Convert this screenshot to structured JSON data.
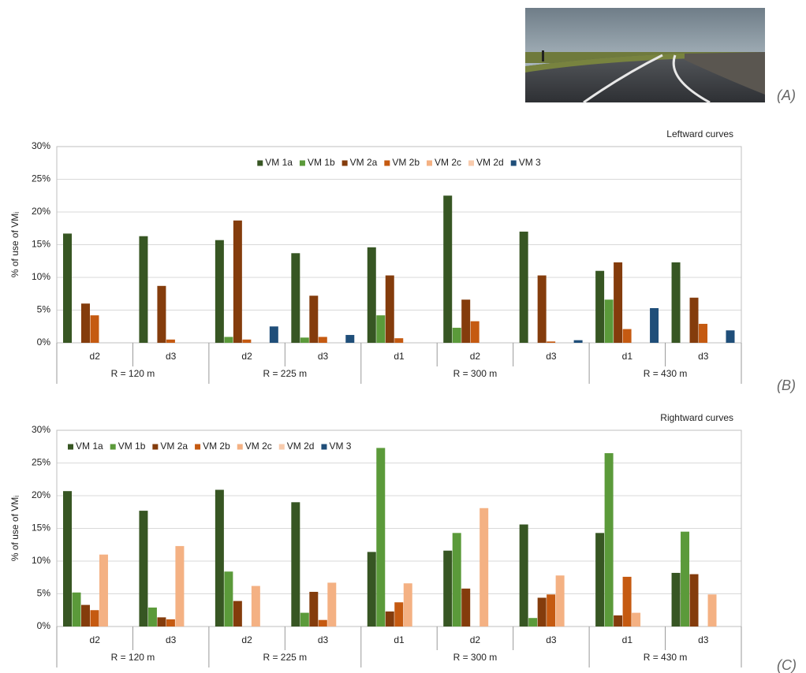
{
  "panel_labels": [
    "(A)",
    "(B)",
    "(C)"
  ],
  "chart_data": [
    {
      "type": "bar",
      "title": "Leftward curves",
      "y_label": "% of use of VMᵢ",
      "category_groups": [
        {
          "name": "R = 120 m",
          "categories": [
            "d2",
            "d3"
          ]
        },
        {
          "name": "R = 225 m",
          "categories": [
            "d2",
            "d3"
          ]
        },
        {
          "name": "R = 300 m",
          "categories": [
            "d1",
            "d2",
            "d3"
          ]
        },
        {
          "name": "R = 430 m",
          "categories": [
            "d1",
            "d3"
          ]
        }
      ],
      "series": [
        {
          "name": "VM 1a",
          "color": "#375623",
          "values": [
            16.7,
            16.3,
            15.7,
            13.7,
            14.6,
            22.5,
            17.0,
            11.0,
            12.3
          ]
        },
        {
          "name": "VM 1b",
          "color": "#5b9a3a",
          "values": [
            0,
            0,
            0.9,
            0.8,
            4.2,
            2.3,
            0,
            6.6,
            0
          ]
        },
        {
          "name": "VM 2a",
          "color": "#843c0c",
          "values": [
            6.0,
            8.7,
            18.7,
            7.2,
            10.3,
            6.6,
            10.3,
            12.3,
            6.9
          ]
        },
        {
          "name": "VM 2b",
          "color": "#c55a11",
          "values": [
            4.2,
            0.5,
            0.5,
            0.9,
            0.7,
            3.3,
            0.2,
            2.1,
            2.9
          ]
        },
        {
          "name": "VM 2c",
          "color": "#f4b183",
          "values": [
            0,
            0,
            0,
            0,
            0,
            0,
            0,
            0,
            0
          ]
        },
        {
          "name": "VM 2d",
          "color": "#f8cbad",
          "values": [
            0,
            0,
            0,
            0,
            0,
            0,
            0,
            0,
            0
          ]
        },
        {
          "name": "VM 3",
          "color": "#1f4e79",
          "values": [
            0,
            0,
            2.5,
            1.2,
            0,
            0,
            0.4,
            5.3,
            1.9
          ]
        }
      ],
      "ylim": [
        0,
        30
      ],
      "yticks": [
        {
          "value": 0,
          "label": "0%"
        },
        {
          "value": 5,
          "label": "5%"
        },
        {
          "value": 10,
          "label": "10%"
        },
        {
          "value": 15,
          "label": "15%"
        },
        {
          "value": 20,
          "label": "20%"
        },
        {
          "value": 25,
          "label": "25%"
        },
        {
          "value": 30,
          "label": "30%"
        }
      ],
      "grid": true,
      "legend": "top-center"
    },
    {
      "type": "bar",
      "title": "Rightward curves",
      "y_label": "% of use of VMᵢ",
      "category_groups": [
        {
          "name": "R = 120 m",
          "categories": [
            "d2",
            "d3"
          ]
        },
        {
          "name": "R = 225 m",
          "categories": [
            "d2",
            "d3"
          ]
        },
        {
          "name": "R = 300 m",
          "categories": [
            "d1",
            "d2",
            "d3"
          ]
        },
        {
          "name": "R = 430 m",
          "categories": [
            "d1",
            "d3"
          ]
        }
      ],
      "series": [
        {
          "name": "VM 1a",
          "color": "#375623",
          "values": [
            20.7,
            17.7,
            20.9,
            19.0,
            11.4,
            11.6,
            15.6,
            14.3,
            8.2
          ]
        },
        {
          "name": "VM 1b",
          "color": "#5b9a3a",
          "values": [
            5.2,
            2.9,
            8.4,
            2.1,
            27.3,
            14.3,
            1.3,
            26.5,
            14.5
          ]
        },
        {
          "name": "VM 2a",
          "color": "#843c0c",
          "values": [
            3.3,
            1.4,
            3.9,
            5.3,
            2.3,
            5.8,
            4.4,
            1.7,
            8.0
          ]
        },
        {
          "name": "VM 2b",
          "color": "#c55a11",
          "values": [
            2.5,
            1.1,
            0,
            1.0,
            3.7,
            0,
            4.9,
            7.6,
            0
          ]
        },
        {
          "name": "VM 2c",
          "color": "#f4b183",
          "values": [
            11.0,
            12.3,
            6.2,
            6.7,
            6.6,
            18.1,
            7.8,
            2.1,
            4.9
          ]
        },
        {
          "name": "VM 2d",
          "color": "#f8cbad",
          "values": [
            0,
            0,
            0,
            0,
            0,
            0,
            0,
            0,
            0
          ]
        },
        {
          "name": "VM 3",
          "color": "#1f4e79",
          "values": [
            0,
            0,
            0,
            0,
            0,
            0,
            0,
            0,
            0
          ]
        }
      ],
      "ylim": [
        0,
        30
      ],
      "yticks": [
        {
          "value": 0,
          "label": "0%"
        },
        {
          "value": 5,
          "label": "5%"
        },
        {
          "value": 10,
          "label": "10%"
        },
        {
          "value": 15,
          "label": "15%"
        },
        {
          "value": 20,
          "label": "20%"
        },
        {
          "value": 25,
          "label": "25%"
        },
        {
          "value": 30,
          "label": "30%"
        }
      ],
      "grid": true,
      "legend": "top-left"
    }
  ]
}
